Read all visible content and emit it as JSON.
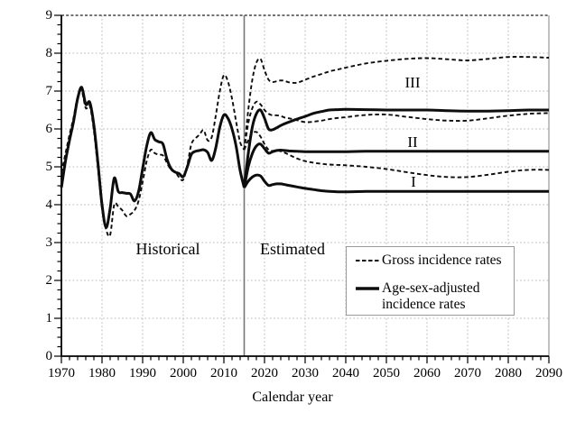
{
  "figure": {
    "background": "#ffffff",
    "axis_color": "#000000",
    "grid_color": "#b8b8b8",
    "frame_top_color": "#444444",
    "frame_right_color": "#999999",
    "divider_color": "#757575",
    "line_color": "#0d0d0d"
  },
  "labels": {
    "historical": "Historical",
    "estimated": "Estimated",
    "scenario_I": "I",
    "scenario_II": "II",
    "scenario_III": "III"
  },
  "legend": {
    "gross_label": "Gross incidence rates",
    "adjusted_label_line1": "Age-sex-adjusted",
    "adjusted_label_line2": "incidence rates"
  },
  "chart_data": {
    "type": "line",
    "title": "",
    "xlabel": "Calendar year",
    "ylabel": "",
    "xlim": [
      1970,
      2090
    ],
    "ylim": [
      0,
      9
    ],
    "x_ticks_major": [
      1970,
      1980,
      1990,
      2000,
      2010,
      2020,
      2030,
      2040,
      2050,
      2060,
      2070,
      2080,
      2090
    ],
    "x_minor_step": 2,
    "y_ticks_major": [
      0,
      1,
      2,
      3,
      4,
      5,
      6,
      7,
      8,
      9
    ],
    "y_minor_step": 0.25,
    "grid": "dotted",
    "legend_position": "lower-right-inside",
    "divider_year": 2015,
    "annotations": [
      {
        "text": "Historical",
        "x": 1996,
        "y": 2.8
      },
      {
        "text": "Estimated",
        "x": 2026.5,
        "y": 2.8
      },
      {
        "text": "III",
        "x": 2056,
        "y": 7.2
      },
      {
        "text": "II",
        "x": 2056,
        "y": 5.65
      },
      {
        "text": "I",
        "x": 2056.5,
        "y": 4.6
      }
    ],
    "series": [
      {
        "name": "Gross incidence rates (historical)",
        "group": "gross",
        "segment": "historical",
        "style": "dashed",
        "x": [
          1970,
          1971,
          1972,
          1973,
          1974,
          1975,
          1976,
          1977,
          1978,
          1979,
          1980,
          1981,
          1982,
          1983,
          1984,
          1985,
          1986,
          1987,
          1988,
          1989,
          1990,
          1991,
          1992,
          1993,
          1994,
          1995,
          1996,
          1997,
          1998,
          1999,
          2000,
          2001,
          2002,
          2003,
          2004,
          2005,
          2006,
          2007,
          2008,
          2009,
          2010,
          2011,
          2012,
          2013,
          2014,
          2015
        ],
        "y": [
          4.85,
          5.35,
          5.85,
          6.3,
          6.85,
          7.0,
          6.55,
          6.6,
          5.95,
          4.95,
          3.9,
          3.35,
          3.2,
          4.0,
          3.95,
          3.85,
          3.7,
          3.75,
          3.85,
          4.1,
          4.6,
          5.15,
          5.45,
          5.36,
          5.32,
          5.3,
          5.1,
          4.92,
          4.87,
          4.72,
          4.66,
          5.05,
          5.6,
          5.75,
          5.85,
          5.97,
          5.7,
          5.78,
          6.35,
          7.0,
          7.42,
          7.25,
          6.8,
          6.2,
          5.65,
          5.45
        ]
      },
      {
        "name": "Age-sex-adjusted incidence rates (historical)",
        "group": "adjusted",
        "segment": "historical",
        "style": "solid",
        "x": [
          1970,
          1971,
          1972,
          1973,
          1974,
          1975,
          1976,
          1977,
          1978,
          1979,
          1980,
          1981,
          1982,
          1983,
          1984,
          1985,
          1986,
          1987,
          1988,
          1989,
          1990,
          1991,
          1992,
          1993,
          1994,
          1995,
          1996,
          1997,
          1998,
          1999,
          2000,
          2001,
          2002,
          2003,
          2004,
          2005,
          2006,
          2007,
          2008,
          2009,
          2010,
          2011,
          2012,
          2013,
          2014,
          2015
        ],
        "y": [
          4.45,
          5.15,
          5.7,
          6.2,
          6.8,
          7.1,
          6.65,
          6.7,
          6.1,
          5.1,
          4.0,
          3.4,
          3.9,
          4.7,
          4.35,
          4.32,
          4.3,
          4.28,
          4.1,
          4.35,
          4.95,
          5.55,
          5.9,
          5.72,
          5.66,
          5.6,
          5.2,
          4.95,
          4.86,
          4.82,
          4.74,
          5.0,
          5.33,
          5.41,
          5.43,
          5.45,
          5.38,
          5.17,
          5.5,
          6.05,
          6.37,
          6.28,
          6.0,
          5.55,
          4.9,
          4.45
        ]
      },
      {
        "name": "Gross incidence rates (estimated, scenario III)",
        "group": "gross",
        "segment": "estimated",
        "scenario": "III",
        "style": "dashed",
        "x": [
          2015,
          2016,
          2017,
          2018,
          2019,
          2020,
          2021,
          2022,
          2023,
          2024,
          2025,
          2026,
          2028,
          2030,
          2032,
          2034,
          2036,
          2038,
          2040,
          2045,
          2050,
          2055,
          2060,
          2065,
          2070,
          2075,
          2080,
          2085,
          2090
        ],
        "y": [
          5.45,
          6.5,
          7.3,
          7.75,
          7.85,
          7.55,
          7.3,
          7.24,
          7.26,
          7.28,
          7.27,
          7.23,
          7.22,
          7.3,
          7.38,
          7.45,
          7.52,
          7.57,
          7.62,
          7.73,
          7.8,
          7.85,
          7.87,
          7.84,
          7.81,
          7.85,
          7.9,
          7.9,
          7.88
        ]
      },
      {
        "name": "Gross incidence rates (estimated, scenario II)",
        "group": "gross",
        "segment": "estimated",
        "scenario": "II",
        "style": "dashed",
        "x": [
          2015,
          2016,
          2017,
          2018,
          2019,
          2020,
          2021,
          2022,
          2023,
          2024,
          2025,
          2026,
          2028,
          2030,
          2032,
          2034,
          2036,
          2038,
          2040,
          2045,
          2050,
          2055,
          2060,
          2065,
          2070,
          2075,
          2080,
          2085,
          2090
        ],
        "y": [
          5.45,
          6.15,
          6.55,
          6.72,
          6.65,
          6.5,
          6.4,
          6.36,
          6.36,
          6.34,
          6.3,
          6.28,
          6.23,
          6.18,
          6.19,
          6.22,
          6.26,
          6.29,
          6.31,
          6.37,
          6.38,
          6.32,
          6.26,
          6.22,
          6.22,
          6.28,
          6.35,
          6.4,
          6.42
        ]
      },
      {
        "name": "Gross incidence rates (estimated, scenario I)",
        "group": "gross",
        "segment": "estimated",
        "scenario": "I",
        "style": "dashed",
        "x": [
          2015,
          2016,
          2017,
          2018,
          2019,
          2020,
          2021,
          2022,
          2023,
          2024,
          2025,
          2026,
          2028,
          2030,
          2032,
          2034,
          2036,
          2038,
          2040,
          2045,
          2050,
          2055,
          2060,
          2065,
          2070,
          2075,
          2080,
          2085,
          2090
        ],
        "y": [
          5.45,
          5.7,
          5.88,
          5.92,
          5.8,
          5.6,
          5.45,
          5.42,
          5.44,
          5.41,
          5.37,
          5.32,
          5.22,
          5.15,
          5.11,
          5.08,
          5.06,
          5.05,
          5.04,
          5.0,
          4.94,
          4.86,
          4.78,
          4.73,
          4.73,
          4.79,
          4.87,
          4.92,
          4.92
        ]
      },
      {
        "name": "Age-sex-adjusted incidence rates (estimated, scenario III)",
        "group": "adjusted",
        "segment": "estimated",
        "scenario": "III",
        "style": "solid",
        "x": [
          2015,
          2016,
          2017,
          2018,
          2019,
          2020,
          2021,
          2022,
          2023,
          2024,
          2025,
          2026,
          2028,
          2030,
          2032,
          2034,
          2036,
          2038,
          2040,
          2045,
          2050,
          2055,
          2060,
          2065,
          2070,
          2075,
          2080,
          2085,
          2090
        ],
        "y": [
          4.45,
          5.35,
          6.05,
          6.4,
          6.5,
          6.28,
          6.0,
          5.98,
          6.03,
          6.09,
          6.14,
          6.18,
          6.26,
          6.33,
          6.41,
          6.46,
          6.5,
          6.51,
          6.52,
          6.51,
          6.5,
          6.5,
          6.5,
          6.48,
          6.47,
          6.47,
          6.48,
          6.5,
          6.5
        ]
      },
      {
        "name": "Age-sex-adjusted incidence rates (estimated, scenario II)",
        "group": "adjusted",
        "segment": "estimated",
        "scenario": "II",
        "style": "solid",
        "x": [
          2015,
          2016,
          2017,
          2018,
          2019,
          2020,
          2021,
          2022,
          2023,
          2024,
          2025,
          2026,
          2028,
          2030,
          2032,
          2034,
          2036,
          2038,
          2040,
          2045,
          2050,
          2055,
          2060,
          2065,
          2070,
          2075,
          2080,
          2085,
          2090
        ],
        "y": [
          4.45,
          5.0,
          5.35,
          5.55,
          5.6,
          5.48,
          5.36,
          5.4,
          5.43,
          5.44,
          5.43,
          5.42,
          5.41,
          5.4,
          5.4,
          5.4,
          5.4,
          5.4,
          5.4,
          5.41,
          5.41,
          5.41,
          5.41,
          5.41,
          5.41,
          5.41,
          5.41,
          5.41,
          5.41
        ]
      },
      {
        "name": "Age-sex-adjusted incidence rates (estimated, scenario I)",
        "group": "adjusted",
        "segment": "estimated",
        "scenario": "I",
        "style": "solid",
        "x": [
          2015,
          2016,
          2017,
          2018,
          2019,
          2020,
          2021,
          2022,
          2023,
          2024,
          2025,
          2026,
          2028,
          2030,
          2032,
          2034,
          2036,
          2038,
          2040,
          2045,
          2050,
          2055,
          2060,
          2065,
          2070,
          2075,
          2080,
          2085,
          2090
        ],
        "y": [
          4.45,
          4.62,
          4.73,
          4.78,
          4.76,
          4.62,
          4.51,
          4.53,
          4.55,
          4.55,
          4.53,
          4.51,
          4.47,
          4.43,
          4.4,
          4.37,
          4.35,
          4.34,
          4.34,
          4.35,
          4.35,
          4.35,
          4.35,
          4.35,
          4.35,
          4.35,
          4.35,
          4.35,
          4.35
        ]
      }
    ]
  }
}
